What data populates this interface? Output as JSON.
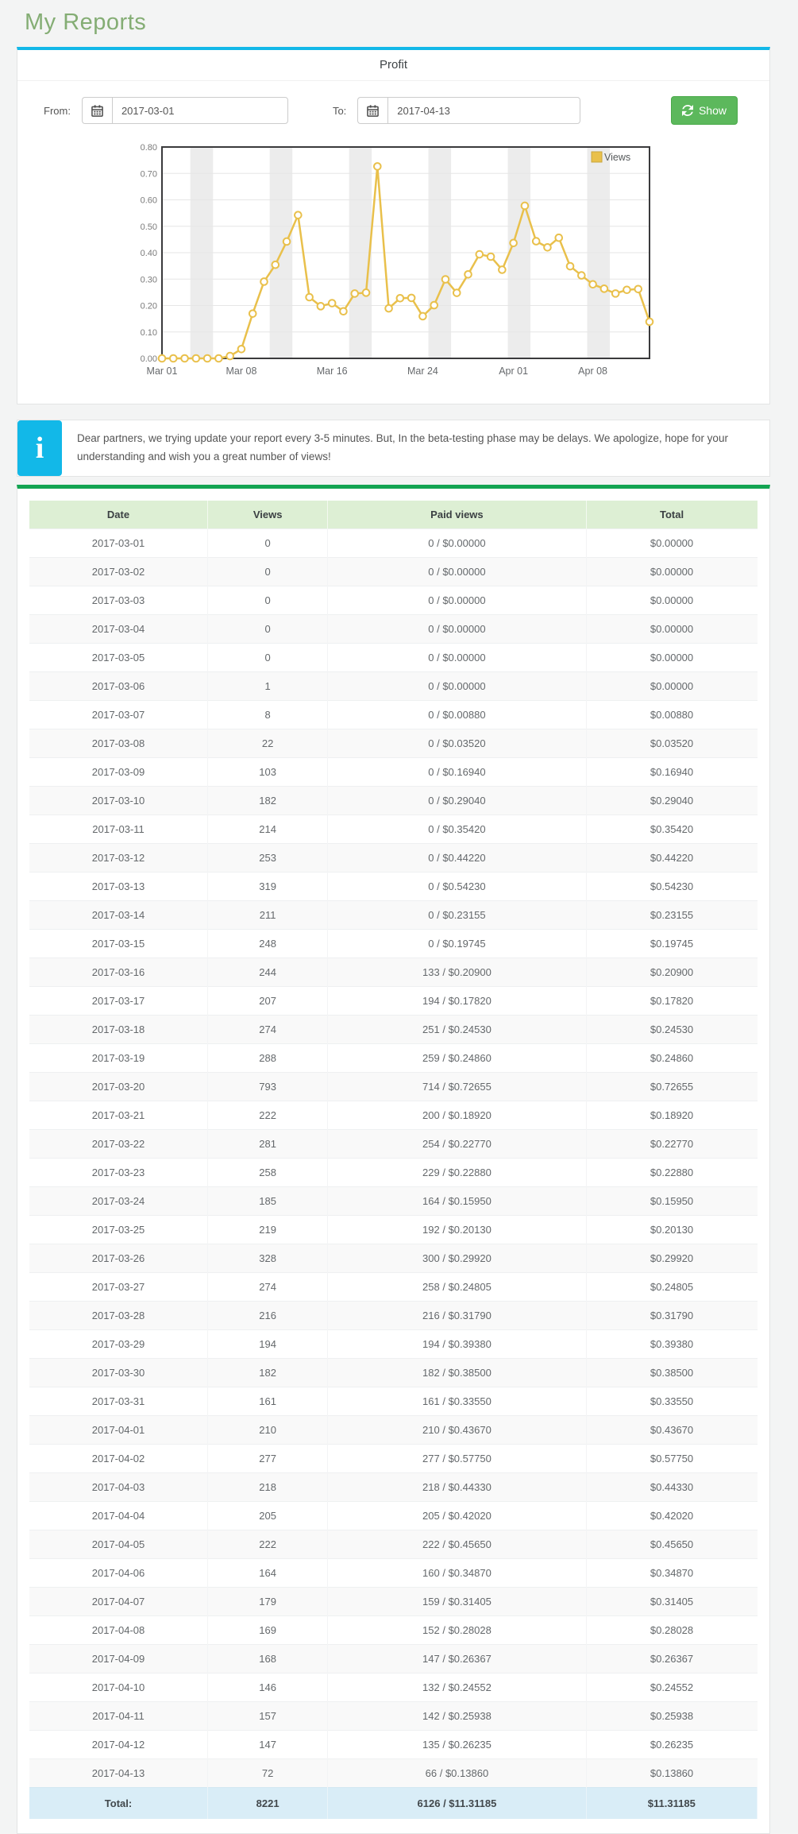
{
  "page": {
    "title": "My Reports",
    "background_color": "#f3f4f4",
    "title_color": "#84ad74"
  },
  "profit_panel": {
    "title": "Profit",
    "accent_border_color": "#12b8e8",
    "from_label": "From:",
    "from_value": "2017-03-01",
    "to_label": "To:",
    "to_value": "2017-04-13",
    "show_button_label": "Show",
    "show_button_color": "#5cb85c"
  },
  "info_box": {
    "icon": "info-icon",
    "icon_color": "#12b8e8",
    "text": "Dear partners, we trying update your report every 3-5 minutes. But, In the beta-testing phase may be delays. We apologize, hope for your understanding and wish you a great number of views!"
  },
  "chart_data": {
    "type": "line",
    "title": "",
    "legend_position": "top-right",
    "grid": true,
    "weekend_shading_color": "#ececec",
    "plot_border_color": "#3a3a3c",
    "ylim": [
      0,
      0.8
    ],
    "ytick_step": 0.1,
    "x": [
      "2017-03-01",
      "2017-03-02",
      "2017-03-03",
      "2017-03-04",
      "2017-03-05",
      "2017-03-06",
      "2017-03-07",
      "2017-03-08",
      "2017-03-09",
      "2017-03-10",
      "2017-03-11",
      "2017-03-12",
      "2017-03-13",
      "2017-03-14",
      "2017-03-15",
      "2017-03-16",
      "2017-03-17",
      "2017-03-18",
      "2017-03-19",
      "2017-03-20",
      "2017-03-21",
      "2017-03-22",
      "2017-03-23",
      "2017-03-24",
      "2017-03-25",
      "2017-03-26",
      "2017-03-27",
      "2017-03-28",
      "2017-03-29",
      "2017-03-30",
      "2017-03-31",
      "2017-04-01",
      "2017-04-02",
      "2017-04-03",
      "2017-04-04",
      "2017-04-05",
      "2017-04-06",
      "2017-04-07",
      "2017-04-08",
      "2017-04-09",
      "2017-04-10",
      "2017-04-11",
      "2017-04-12",
      "2017-04-13"
    ],
    "xticks": [
      {
        "index": 0,
        "label": "Mar 01"
      },
      {
        "index": 7,
        "label": "Mar 08"
      },
      {
        "index": 15,
        "label": "Mar 16"
      },
      {
        "index": 23,
        "label": "Mar 24"
      },
      {
        "index": 31,
        "label": "Apr 01"
      },
      {
        "index": 38,
        "label": "Apr 08"
      }
    ],
    "series": [
      {
        "name": "Views",
        "color": "#e9c04b",
        "marker_fill": "#ffffff",
        "values": [
          0,
          0,
          0,
          0,
          0,
          0,
          0.0088,
          0.0352,
          0.1694,
          0.2904,
          0.3542,
          0.4422,
          0.5423,
          0.23155,
          0.19745,
          0.209,
          0.1782,
          0.2453,
          0.2486,
          0.72655,
          0.1892,
          0.2277,
          0.2288,
          0.1595,
          0.2013,
          0.2992,
          0.24805,
          0.3179,
          0.3938,
          0.385,
          0.3355,
          0.4367,
          0.5775,
          0.4433,
          0.4202,
          0.4565,
          0.3487,
          0.31405,
          0.28028,
          0.26367,
          0.24552,
          0.25938,
          0.26235,
          0.1386
        ]
      }
    ]
  },
  "table": {
    "headers": [
      "Date",
      "Views",
      "Paid views",
      "Total"
    ],
    "header_bg": "#ddefd4",
    "total_row_bg": "#d9edf7",
    "rows": [
      [
        "2017-03-01",
        "0",
        "0 / $0.00000",
        "$0.00000"
      ],
      [
        "2017-03-02",
        "0",
        "0 / $0.00000",
        "$0.00000"
      ],
      [
        "2017-03-03",
        "0",
        "0 / $0.00000",
        "$0.00000"
      ],
      [
        "2017-03-04",
        "0",
        "0 / $0.00000",
        "$0.00000"
      ],
      [
        "2017-03-05",
        "0",
        "0 / $0.00000",
        "$0.00000"
      ],
      [
        "2017-03-06",
        "1",
        "0 / $0.00000",
        "$0.00000"
      ],
      [
        "2017-03-07",
        "8",
        "0 / $0.00880",
        "$0.00880"
      ],
      [
        "2017-03-08",
        "22",
        "0 / $0.03520",
        "$0.03520"
      ],
      [
        "2017-03-09",
        "103",
        "0 / $0.16940",
        "$0.16940"
      ],
      [
        "2017-03-10",
        "182",
        "0 / $0.29040",
        "$0.29040"
      ],
      [
        "2017-03-11",
        "214",
        "0 / $0.35420",
        "$0.35420"
      ],
      [
        "2017-03-12",
        "253",
        "0 / $0.44220",
        "$0.44220"
      ],
      [
        "2017-03-13",
        "319",
        "0 / $0.54230",
        "$0.54230"
      ],
      [
        "2017-03-14",
        "211",
        "0 / $0.23155",
        "$0.23155"
      ],
      [
        "2017-03-15",
        "248",
        "0 / $0.19745",
        "$0.19745"
      ],
      [
        "2017-03-16",
        "244",
        "133 / $0.20900",
        "$0.20900"
      ],
      [
        "2017-03-17",
        "207",
        "194 / $0.17820",
        "$0.17820"
      ],
      [
        "2017-03-18",
        "274",
        "251 / $0.24530",
        "$0.24530"
      ],
      [
        "2017-03-19",
        "288",
        "259 / $0.24860",
        "$0.24860"
      ],
      [
        "2017-03-20",
        "793",
        "714 / $0.72655",
        "$0.72655"
      ],
      [
        "2017-03-21",
        "222",
        "200 / $0.18920",
        "$0.18920"
      ],
      [
        "2017-03-22",
        "281",
        "254 / $0.22770",
        "$0.22770"
      ],
      [
        "2017-03-23",
        "258",
        "229 / $0.22880",
        "$0.22880"
      ],
      [
        "2017-03-24",
        "185",
        "164 / $0.15950",
        "$0.15950"
      ],
      [
        "2017-03-25",
        "219",
        "192 / $0.20130",
        "$0.20130"
      ],
      [
        "2017-03-26",
        "328",
        "300 / $0.29920",
        "$0.29920"
      ],
      [
        "2017-03-27",
        "274",
        "258 / $0.24805",
        "$0.24805"
      ],
      [
        "2017-03-28",
        "216",
        "216 / $0.31790",
        "$0.31790"
      ],
      [
        "2017-03-29",
        "194",
        "194 / $0.39380",
        "$0.39380"
      ],
      [
        "2017-03-30",
        "182",
        "182 / $0.38500",
        "$0.38500"
      ],
      [
        "2017-03-31",
        "161",
        "161 / $0.33550",
        "$0.33550"
      ],
      [
        "2017-04-01",
        "210",
        "210 / $0.43670",
        "$0.43670"
      ],
      [
        "2017-04-02",
        "277",
        "277 / $0.57750",
        "$0.57750"
      ],
      [
        "2017-04-03",
        "218",
        "218 / $0.44330",
        "$0.44330"
      ],
      [
        "2017-04-04",
        "205",
        "205 / $0.42020",
        "$0.42020"
      ],
      [
        "2017-04-05",
        "222",
        "222 / $0.45650",
        "$0.45650"
      ],
      [
        "2017-04-06",
        "164",
        "160 / $0.34870",
        "$0.34870"
      ],
      [
        "2017-04-07",
        "179",
        "159 / $0.31405",
        "$0.31405"
      ],
      [
        "2017-04-08",
        "169",
        "152 / $0.28028",
        "$0.28028"
      ],
      [
        "2017-04-09",
        "168",
        "147 / $0.26367",
        "$0.26367"
      ],
      [
        "2017-04-10",
        "146",
        "132 / $0.24552",
        "$0.24552"
      ],
      [
        "2017-04-11",
        "157",
        "142 / $0.25938",
        "$0.25938"
      ],
      [
        "2017-04-12",
        "147",
        "135 / $0.26235",
        "$0.26235"
      ],
      [
        "2017-04-13",
        "72",
        "66 / $0.13860",
        "$0.13860"
      ]
    ],
    "total_row": [
      "Total:",
      "8221",
      "6126 / $11.31185",
      "$11.31185"
    ]
  }
}
